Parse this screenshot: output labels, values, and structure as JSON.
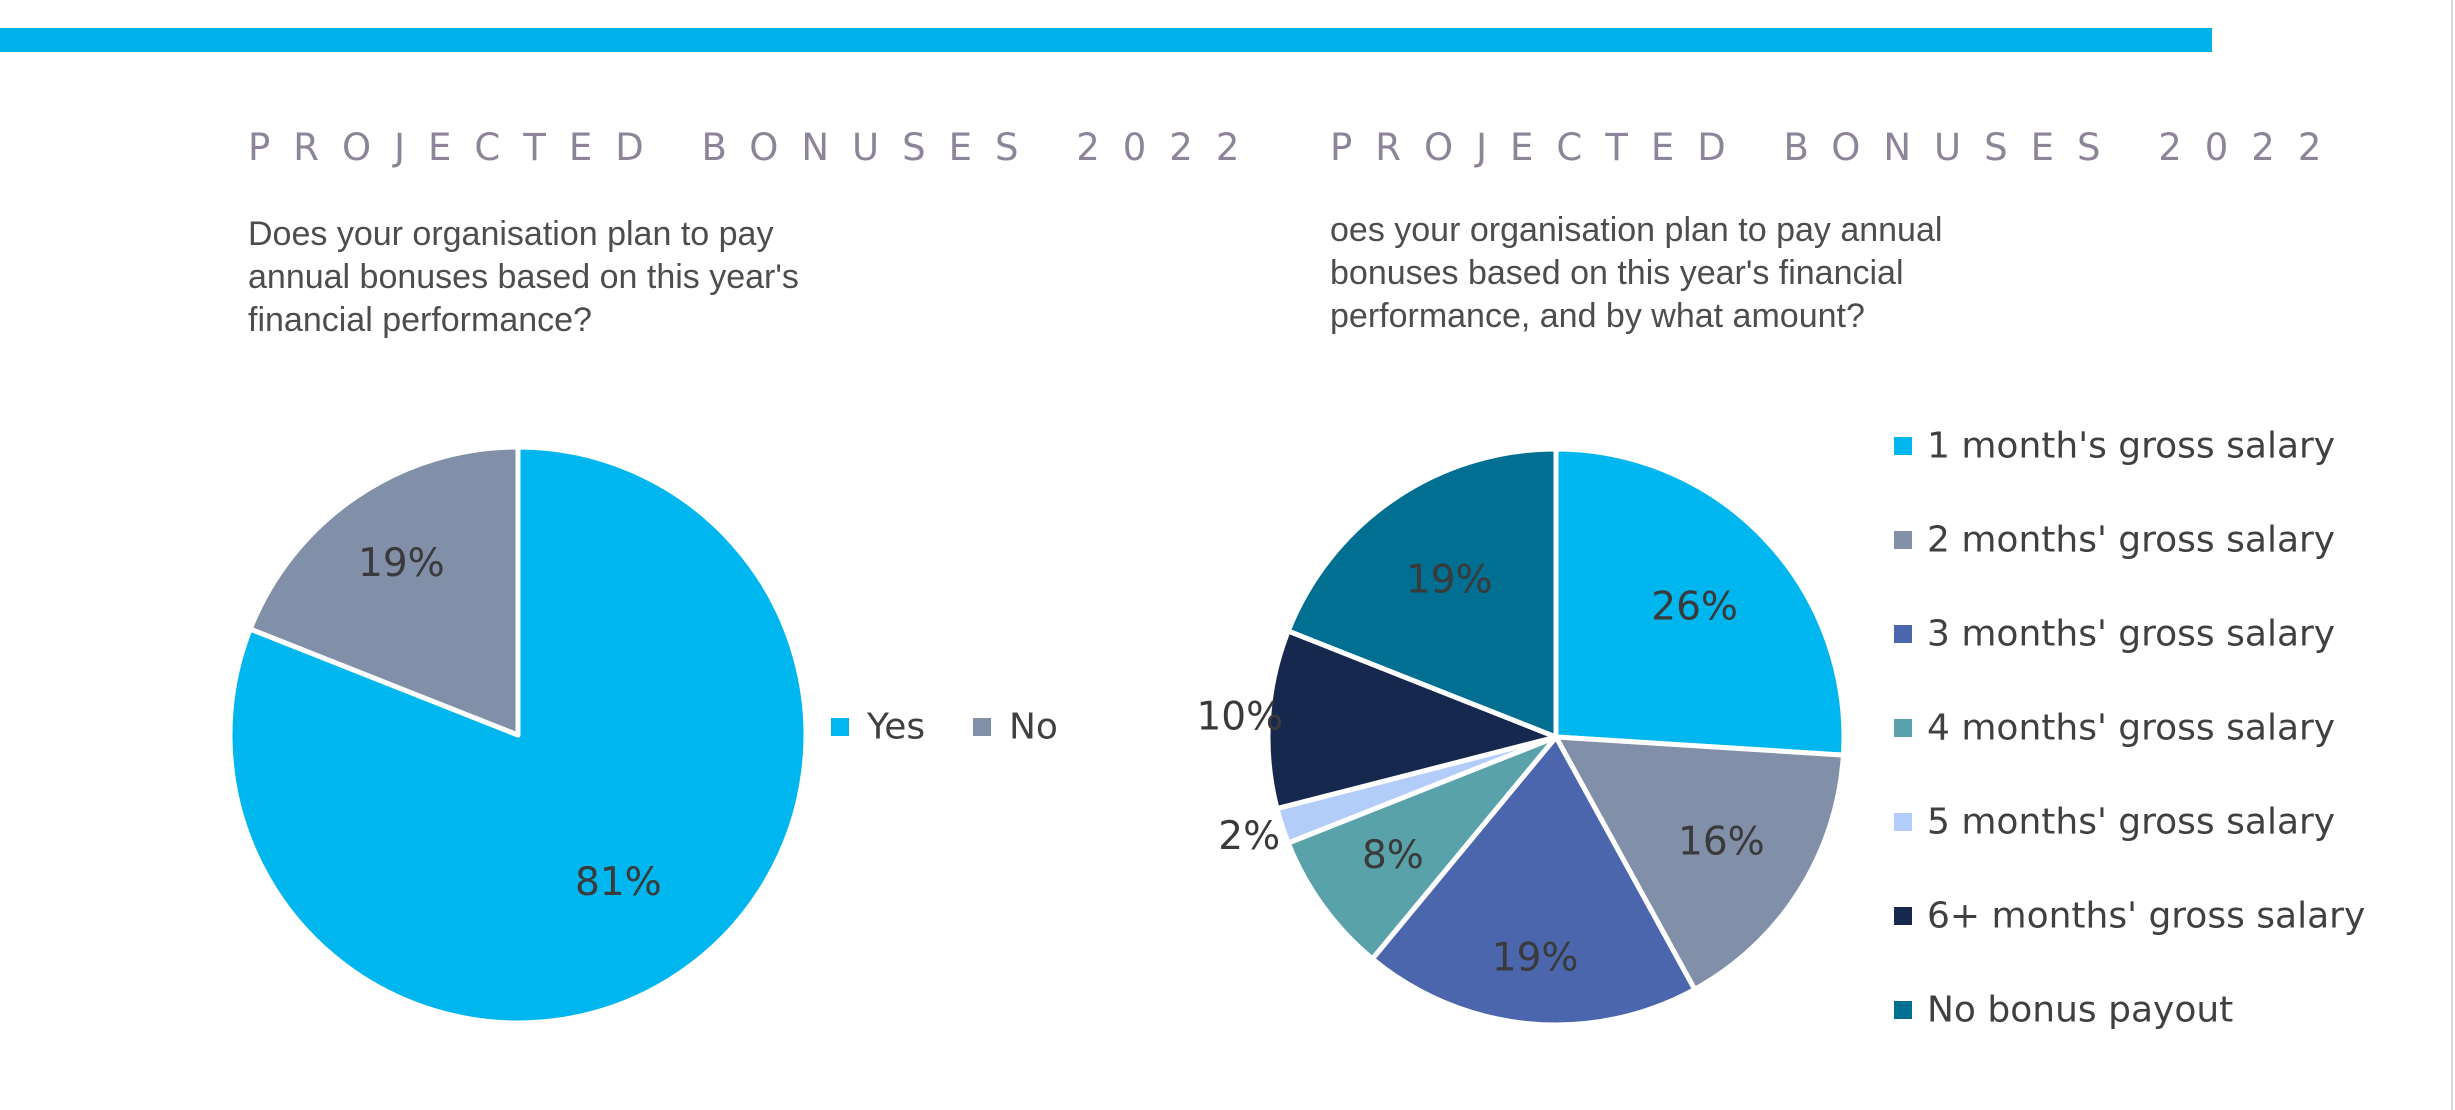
{
  "colors": {
    "accent_bar": "#00b3ec",
    "title": "#8d8499",
    "question": "#4d4d4d"
  },
  "panels": [
    {
      "title": "PROJECTED BONUSES 2022",
      "question": "Does your organisation plan to pay annual bonuses based on this year's financial performance?"
    },
    {
      "title": "PROJECTED BONUSES 2022",
      "question": "oes your organisation plan to pay annual bonuses based on this year's financial performance, and by what amount?"
    }
  ],
  "chart_data": [
    {
      "type": "pie",
      "title": "",
      "legend_position": "right",
      "slices": [
        {
          "label": "Yes",
          "value": 81,
          "display": "81%",
          "color": "#00b6ef"
        },
        {
          "label": "No",
          "value": 19,
          "display": "19%",
          "color": "#818fa8"
        }
      ]
    },
    {
      "type": "pie",
      "title": "",
      "legend_position": "right",
      "slices": [
        {
          "label": "1 month's gross salary",
          "value": 26,
          "display": "26%",
          "color": "#00b6ef"
        },
        {
          "label": "2 months' gross salary",
          "value": 16,
          "display": "16%",
          "color": "#818fa8"
        },
        {
          "label": "3 months' gross salary",
          "value": 19,
          "display": "19%",
          "color": "#4b66ad"
        },
        {
          "label": "4 months' gross salary",
          "value": 8,
          "display": "8%",
          "color": "#5aa2aa"
        },
        {
          "label": "5 months' gross salary",
          "value": 2,
          "display": "2%",
          "color": "#b3cdfa"
        },
        {
          "label": "6+ months' gross salary",
          "value": 10,
          "display": "10%",
          "color": "#17284f"
        },
        {
          "label": "No bonus payout",
          "value": 19,
          "display": "19%",
          "color": "#006f92"
        }
      ]
    }
  ]
}
